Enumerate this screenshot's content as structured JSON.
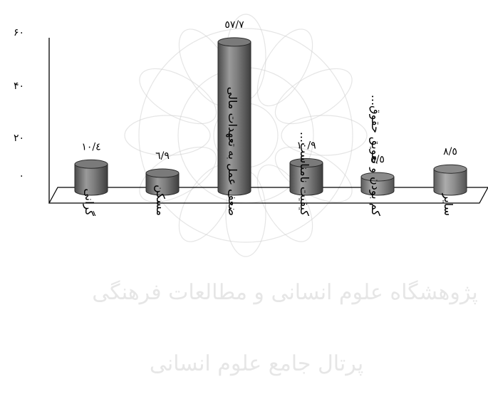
{
  "chart_data": {
    "type": "bar",
    "categories": [
      "گرانی",
      "مسکن",
      "ضعف عمل به تعهدات مالی",
      "کیفیت نامناسب...",
      "کم بودن و تعویق حقوق...",
      "سایر"
    ],
    "values": [
      10.4,
      6.9,
      57.7,
      10.9,
      5.5,
      8.5
    ],
    "value_labels": [
      "۱۰/٤",
      "٦/٩",
      "٥٧/٧",
      "۱۰/٩",
      "٥/٥",
      "٨/٥"
    ],
    "yticks": [
      "۰",
      "۲۰",
      "۴۰",
      "۶۰"
    ],
    "ylim": [
      0,
      60
    ],
    "bar_colors": [
      "#7a7a7a",
      "#7a7a7a",
      "#7a7a7a",
      "#7a7a7a",
      "#8a8a8a",
      "#8a8a8a"
    ],
    "grid": false,
    "legend": "none"
  },
  "watermark": {
    "line1": "پژوهشگاه علوم انسانی و مطالعات فرهنگی",
    "line2": "پرتال جامع علوم انسانی"
  }
}
